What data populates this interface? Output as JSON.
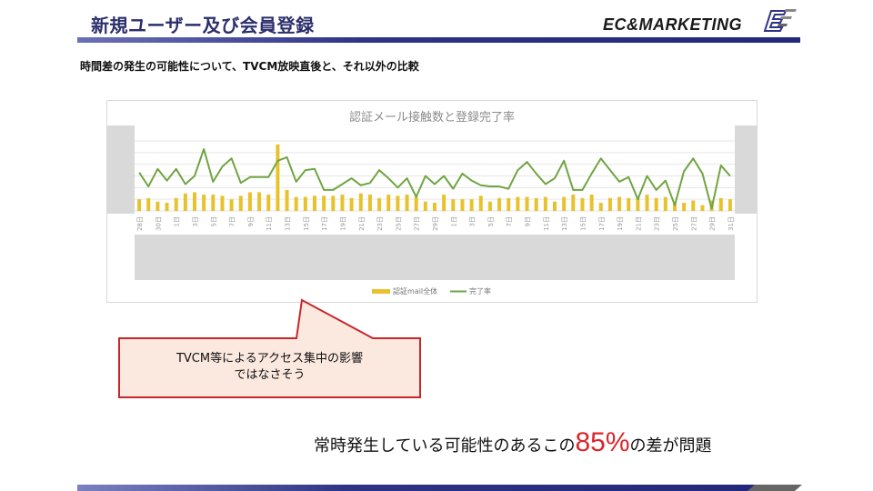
{
  "slide": {
    "title": "新規ユーザー及び会員登録",
    "subtitle": "時間差の発生の可能性について、TVCM放映直後と、それ以外の比較",
    "logo_text": "EC&MARKETING",
    "callout_line1": "TVCM等によるアクセス集中の影響",
    "callout_line2": "ではなさそう",
    "bottom_pre": "常時発生している可能性のあるこの",
    "bottom_highlight": "85%",
    "bottom_post": "の差が問題"
  },
  "colors": {
    "navy": "#2e3385",
    "bar": "#e8c22c",
    "line": "#70a542",
    "callout_border": "#c8262c",
    "callout_fill": "#fbe8de",
    "highlight": "#d9262c"
  },
  "chart_data": {
    "type": "bar+line",
    "title": "認証メール接触数と登録完了率",
    "x_tick_labels": [
      "28日",
      "30日",
      "1日",
      "3日",
      "5日",
      "7日",
      "9日",
      "11日",
      "13日",
      "15日",
      "17日",
      "19日",
      "21日",
      "23日",
      "25日",
      "27日",
      "29日",
      "1日",
      "3日",
      "5日",
      "7日",
      "9日",
      "11日",
      "13日",
      "15日",
      "17日",
      "19日",
      "21日",
      "23日",
      "25日",
      "27日",
      "29日",
      "31日"
    ],
    "grid": true,
    "y_axis_labels_shown": false,
    "legend_position": "bottom",
    "series": [
      {
        "name": "認証mail全体",
        "type": "bar",
        "color": "#e8c22c",
        "values": [
          1.0,
          1.1,
          0.8,
          0.7,
          1.1,
          1.5,
          1.6,
          1.4,
          1.4,
          1.3,
          1.0,
          1.3,
          1.6,
          1.6,
          1.4,
          5.7,
          1.8,
          1.2,
          1.2,
          1.3,
          1.3,
          1.3,
          1.4,
          1.1,
          1.5,
          1.4,
          1.1,
          1.4,
          1.3,
          1.4,
          1.2,
          0.8,
          0.7,
          1.4,
          1.0,
          1.0,
          1.0,
          1.3,
          0.8,
          1.1,
          1.1,
          1.2,
          1.2,
          1.1,
          1.2,
          0.8,
          1.2,
          1.4,
          1.1,
          1.4,
          0.7,
          1.1,
          1.2,
          1.1,
          1.1,
          1.4,
          1.1,
          1.2,
          0.7,
          0.7,
          0.9,
          0.5,
          0.9,
          1.1,
          1.0
        ]
      },
      {
        "name": "完了率",
        "type": "line",
        "color": "#70a542",
        "values": [
          3.3,
          2.1,
          3.6,
          2.6,
          3.6,
          2.3,
          3.0,
          5.3,
          2.5,
          3.8,
          4.5,
          2.4,
          2.9,
          2.9,
          2.9,
          4.3,
          4.6,
          2.5,
          3.5,
          3.6,
          1.8,
          1.8,
          2.3,
          2.8,
          2.2,
          2.4,
          3.5,
          2.8,
          2.0,
          2.8,
          1.2,
          3.0,
          2.3,
          3.0,
          1.9,
          3.2,
          2.6,
          2.2,
          2.1,
          2.1,
          1.9,
          3.5,
          4.2,
          3.2,
          2.3,
          2.8,
          4.3,
          1.8,
          1.8,
          3.2,
          4.5,
          3.5,
          2.5,
          2.9,
          1.0,
          3.0,
          1.8,
          2.6,
          0.5,
          3.4,
          4.5,
          3.2,
          0.2,
          3.9,
          3.0
        ]
      }
    ],
    "ylim": [
      0,
      6
    ]
  }
}
